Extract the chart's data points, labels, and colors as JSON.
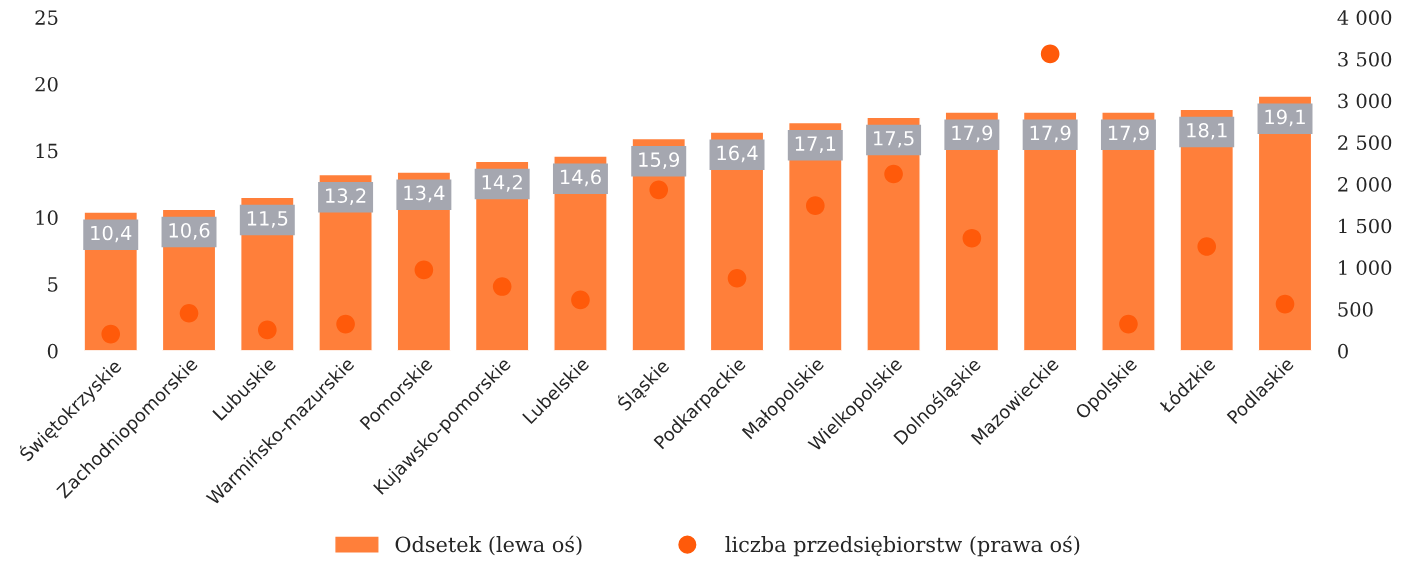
{
  "chart_data": {
    "type": "bar",
    "categories": [
      "Świętokrzyskie",
      "Zachodniopomorskie",
      "Lubuskie",
      "Warmińsko-mazurskie",
      "Pomorskie",
      "Kujawsko-pomorskie",
      "Lubelskie",
      "Śląskie",
      "Podkarpackie",
      "Małopolskie",
      "Wielkopolskie",
      "Dolnośląskie",
      "Mazowieckie",
      "Opolskie",
      "Łódzkie",
      "Podlaskie"
    ],
    "series": [
      {
        "name": "Odsetek (lewa oś)",
        "color": "#ff7f3a",
        "values": [
          10.4,
          10.6,
          11.5,
          13.2,
          13.4,
          14.2,
          14.6,
          15.9,
          16.4,
          17.1,
          17.5,
          17.9,
          17.9,
          17.9,
          18.1,
          19.1
        ],
        "value_labels": [
          "10,4",
          "10,6",
          "11,5",
          "13,2",
          "13,4",
          "14,2",
          "14,6",
          "15,9",
          "16,4",
          "17,1",
          "17,5",
          "17,9",
          "17,9",
          "17,9",
          "18,1",
          "19,1"
        ]
      },
      {
        "name": "liczba przedsiębiorstw (prawa oś)",
        "type": "scatter",
        "axis": "y2",
        "color": "#ff5a0a",
        "values": [
          200,
          450,
          250,
          320,
          970,
          770,
          610,
          1930,
          870,
          1740,
          2120,
          1350,
          3560,
          320,
          1250,
          560
        ]
      }
    ],
    "ylim": [
      0,
      25
    ],
    "yticks": [
      0,
      5,
      10,
      15,
      20,
      25
    ],
    "y2lim": [
      0,
      4000
    ],
    "y2ticks": [
      0,
      {
        "value": 500,
        "label": "500"
      },
      {
        "value": 1000,
        "label": "1 000"
      },
      {
        "value": 1500,
        "label": "1 500"
      },
      {
        "value": 2000,
        "label": "2 000"
      },
      {
        "value": 2500,
        "label": "2 500"
      },
      {
        "value": 3000,
        "label": "3 000"
      },
      {
        "value": 3500,
        "label": "3 500"
      },
      {
        "value": 4000,
        "label": "4 000"
      }
    ],
    "grid": false,
    "legend": "bottom",
    "marker": "circle"
  }
}
